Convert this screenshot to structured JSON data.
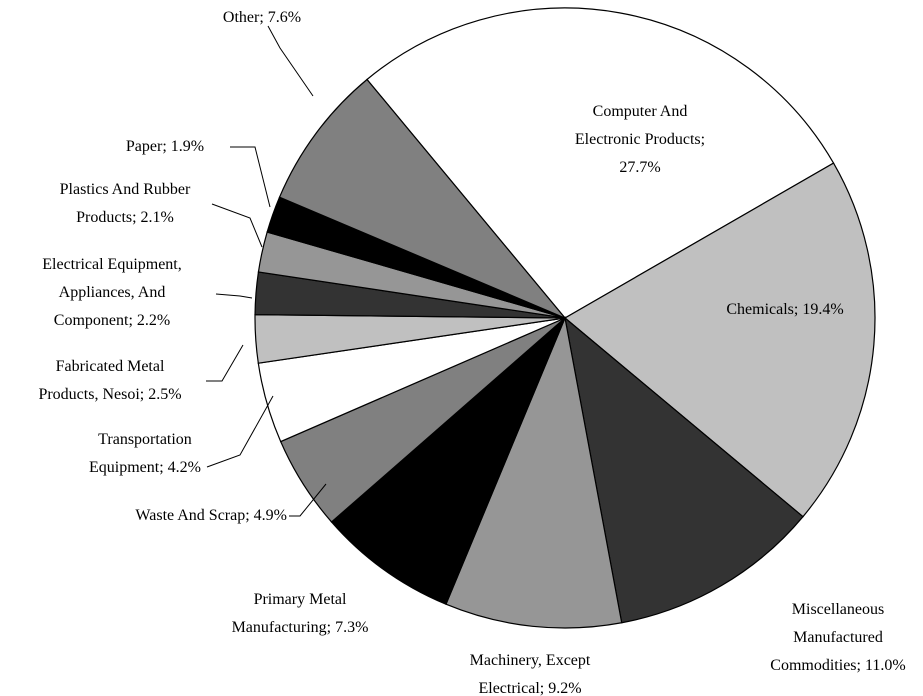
{
  "chart_data": {
    "type": "pie",
    "categories": [
      [
        "Computer And",
        "Electronic Products;",
        "27.7%"
      ],
      [
        "Chemicals; 19.4%"
      ],
      [
        "Miscellaneous",
        "Manufactured",
        "Commodities; 11.0%"
      ],
      [
        "Machinery, Except",
        "Electrical; 9.2%"
      ],
      [
        "Primary Metal",
        "Manufacturing; 7.3%"
      ],
      [
        "Waste And Scrap; 4.9%"
      ],
      [
        "Transportation",
        "Equipment; 4.2%"
      ],
      [
        "Fabricated Metal",
        "Products, Nesoi; 2.5%"
      ],
      [
        "Electrical Equipment,",
        "Appliances, And",
        "Component; 2.2%"
      ],
      [
        "Plastics And Rubber",
        "Products; 2.1%"
      ],
      [
        "Paper; 1.9%"
      ],
      [
        "Other; 7.6%"
      ]
    ],
    "values": [
      27.7,
      19.4,
      11.0,
      9.2,
      7.3,
      4.9,
      4.2,
      2.5,
      2.2,
      2.1,
      1.9,
      7.6
    ],
    "colors": [
      "#ffffff",
      "#c0c0c0",
      "#333333",
      "#969696",
      "#000000",
      "#808080",
      "#ffffff",
      "#c0c0c0",
      "#333333",
      "#969696",
      "#000000",
      "#808080"
    ]
  }
}
